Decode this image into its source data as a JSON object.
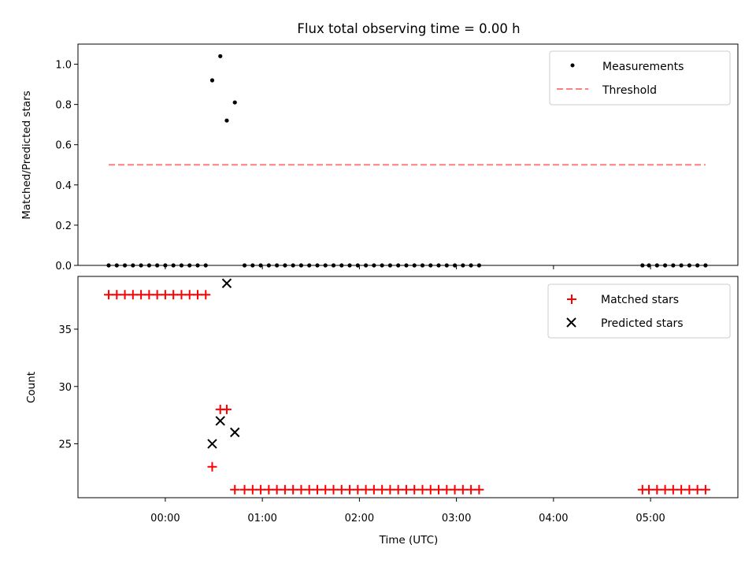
{
  "chart_data": [
    {
      "type": "scatter",
      "title": "Flux total observing time = 0.00 h",
      "xlabel": "",
      "ylabel": "Matched/Predicted stars",
      "ylim": [
        0.0,
        1.1
      ],
      "yticks": [
        0.0,
        0.2,
        0.4,
        0.6,
        0.8,
        1.0
      ],
      "xlim_hours": [
        -0.9,
        5.9
      ],
      "xticks": [
        "00:00",
        "01:00",
        "02:00",
        "03:00",
        "04:00",
        "05:00"
      ],
      "legend_position": "top-right",
      "grid": false,
      "series": [
        {
          "name": "Measurements",
          "kind": "points",
          "color": "#000000",
          "x_time": [
            "-00:35",
            "-00:30",
            "-00:25",
            "-00:20",
            "-00:15",
            "-00:10",
            "-00:05",
            "00:00",
            "00:05",
            "00:10",
            "00:15",
            "00:20",
            "00:25",
            "00:29",
            "00:34",
            "00:38",
            "00:43",
            "00:49",
            "00:54",
            "00:59",
            "01:04",
            "01:09",
            "01:14",
            "01:19",
            "01:24",
            "01:29",
            "01:34",
            "01:39",
            "01:44",
            "01:49",
            "01:54",
            "01:59",
            "02:04",
            "02:09",
            "02:14",
            "02:19",
            "02:24",
            "02:29",
            "02:34",
            "02:39",
            "02:44",
            "02:49",
            "02:54",
            "02:59",
            "03:04",
            "03:09",
            "03:14",
            "04:55",
            "04:59",
            "05:04",
            "05:09",
            "05:14",
            "05:19",
            "05:24",
            "05:29",
            "05:34"
          ],
          "y": [
            0,
            0,
            0,
            0,
            0,
            0,
            0,
            0,
            0,
            0,
            0,
            0,
            0,
            0.92,
            1.04,
            0.72,
            0.81,
            0,
            0,
            0,
            0,
            0,
            0,
            0,
            0,
            0,
            0,
            0,
            0,
            0,
            0,
            0,
            0,
            0,
            0,
            0,
            0,
            0,
            0,
            0,
            0,
            0,
            0,
            0,
            0,
            0,
            0,
            0,
            0,
            0,
            0,
            0,
            0,
            0,
            0,
            0
          ]
        },
        {
          "name": "Threshold",
          "kind": "dashed-line",
          "color": "#ff7f7f",
          "x_time": [
            "-00:35",
            "05:34"
          ],
          "y": [
            0.5,
            0.5
          ]
        }
      ]
    },
    {
      "type": "scatter",
      "title": "",
      "xlabel": "Time (UTC)",
      "ylabel": "Count",
      "ylim": [
        20.3,
        39.6
      ],
      "yticks": [
        25,
        30,
        35
      ],
      "xticks": [
        "00:00",
        "01:00",
        "02:00",
        "03:00",
        "04:00",
        "05:00"
      ],
      "legend_position": "top-right",
      "grid": false,
      "series": [
        {
          "name": "Matched stars",
          "marker": "+",
          "color": "#ff0000",
          "x_time": [
            "-00:35",
            "-00:30",
            "-00:25",
            "-00:20",
            "-00:15",
            "-00:10",
            "-00:05",
            "00:00",
            "00:05",
            "00:10",
            "00:15",
            "00:20",
            "00:25",
            "00:29",
            "00:34",
            "00:38",
            "00:43",
            "00:49",
            "00:54",
            "00:59",
            "01:04",
            "01:09",
            "01:14",
            "01:19",
            "01:24",
            "01:29",
            "01:34",
            "01:39",
            "01:44",
            "01:49",
            "01:54",
            "01:59",
            "02:04",
            "02:09",
            "02:14",
            "02:19",
            "02:24",
            "02:29",
            "02:34",
            "02:39",
            "02:44",
            "02:49",
            "02:54",
            "02:59",
            "03:04",
            "03:09",
            "03:14",
            "04:55",
            "04:59",
            "05:04",
            "05:09",
            "05:14",
            "05:19",
            "05:24",
            "05:29",
            "05:34"
          ],
          "y": [
            38,
            38,
            38,
            38,
            38,
            38,
            38,
            38,
            38,
            38,
            38,
            38,
            38,
            23,
            28,
            28,
            21,
            21,
            21,
            21,
            21,
            21,
            21,
            21,
            21,
            21,
            21,
            21,
            21,
            21,
            21,
            21,
            21,
            21,
            21,
            21,
            21,
            21,
            21,
            21,
            21,
            21,
            21,
            21,
            21,
            21,
            21,
            21,
            21,
            21,
            21,
            21,
            21,
            21,
            21,
            21
          ]
        },
        {
          "name": "Predicted stars",
          "marker": "x",
          "color": "#000000",
          "x_time": [
            "00:29",
            "00:34",
            "00:38",
            "00:43"
          ],
          "y": [
            25,
            27,
            39,
            26
          ]
        }
      ]
    }
  ]
}
